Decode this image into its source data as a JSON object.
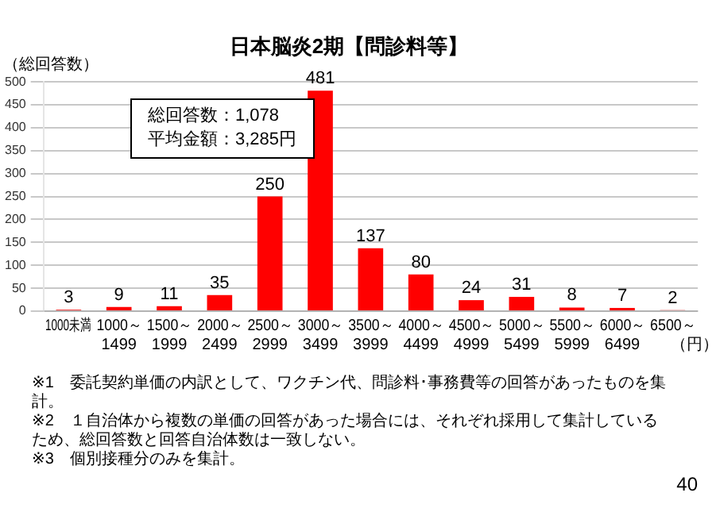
{
  "chart_data": {
    "type": "bar",
    "title": "日本脳炎2期【問診料等】",
    "ylabel": "（総回答数）",
    "xlabel": "（円）",
    "categories": [
      "1000未満",
      "1000～\n1499",
      "1500～\n1999",
      "2000～\n2499",
      "2500～\n2999",
      "3000～\n3499",
      "3500～\n3999",
      "4000～\n4499",
      "4500～\n4999",
      "5000～\n5499",
      "5500～\n5999",
      "6000～\n6499",
      "6500～"
    ],
    "values": [
      3,
      9,
      11,
      35,
      250,
      481,
      137,
      80,
      24,
      31,
      8,
      7,
      2
    ],
    "color": "#ff0000",
    "ylim": [
      0,
      500
    ],
    "yticks": [
      0,
      50,
      100,
      150,
      200,
      250,
      300,
      350,
      400,
      450,
      500
    ],
    "grid": "y",
    "data_labels": true,
    "annotations": [
      "総回答数：1,078\n平均金額：3,285円",
      "※1　委託契約単価の内訳として、ワクチン代、問診料･事務費等の回答があったものを集計。",
      "※2　１自治体から複数の単価の回答があった場合には、それぞれ採用して集計しているため、総回答数と回答自治体数は一致しない。",
      "※3　個別接種分のみを集計。",
      "40"
    ]
  }
}
